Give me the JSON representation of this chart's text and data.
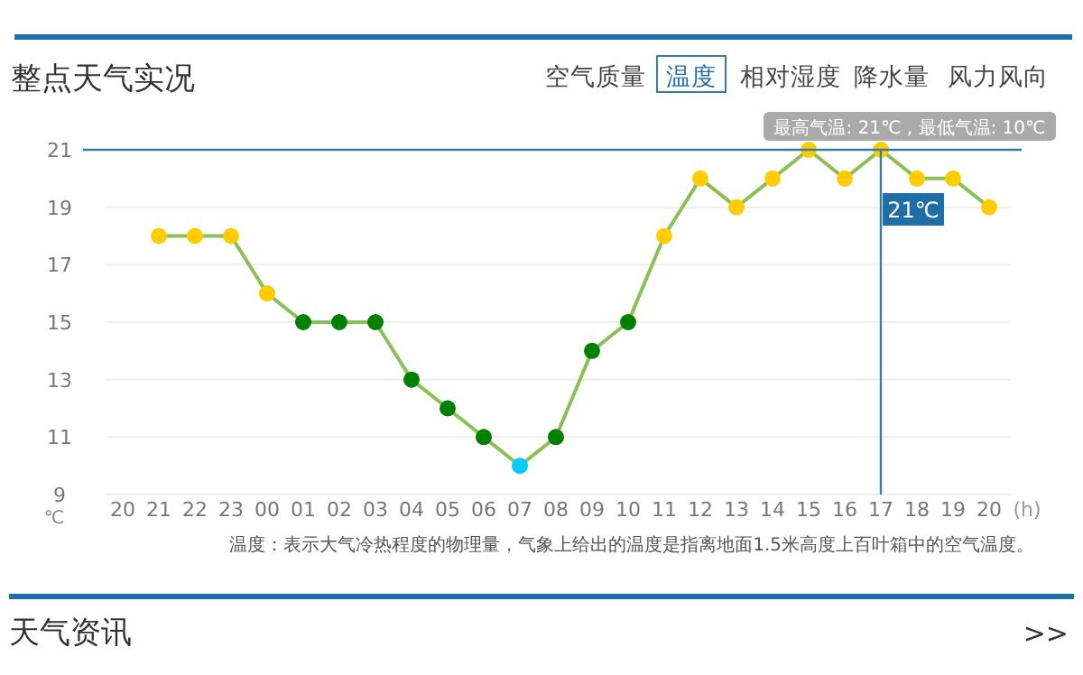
{
  "chart_data": {
    "type": "line",
    "title": "整点天气实况",
    "xlabel": "(h)",
    "ylabel": "℃",
    "categories": [
      "20",
      "21",
      "22",
      "23",
      "00",
      "01",
      "02",
      "03",
      "04",
      "05",
      "06",
      "07",
      "08",
      "09",
      "10",
      "11",
      "12",
      "13",
      "14",
      "15",
      "16",
      "17",
      "18",
      "19",
      "20"
    ],
    "series": [
      {
        "color": "#8cbf55",
        "values": [
          null,
          18,
          18,
          18,
          16,
          15,
          15,
          15,
          13,
          12,
          11,
          10,
          11,
          14,
          15,
          18,
          20,
          19,
          20,
          21,
          20,
          21,
          20,
          20,
          19
        ],
        "colors": [
          null,
          "#ffcc00",
          "#ffcc00",
          "#ffcc00",
          "#ffcc00",
          "#008000",
          "#008000",
          "#008000",
          "#008000",
          "#008000",
          "#008000",
          "#00ccff",
          "#008000",
          "#008000",
          "#008000",
          "#ffcc00",
          "#ffcc00",
          "#ffcc00",
          "#ffcc00",
          "#ffcc00",
          "#ffcc00",
          "#ffcc00",
          "#ffcc00",
          "#ffcc00",
          "#ffcc00"
        ]
      }
    ],
    "ylim": [
      9,
      21
    ],
    "yticks": [
      9,
      11,
      13,
      15,
      17,
      19,
      21
    ],
    "grid": "y",
    "marker": "circle",
    "ref_lines": [
      {
        "axis": "y",
        "value": 21,
        "color": "#3a7ca8"
      },
      {
        "axis": "x",
        "value": "17",
        "label": "21℃",
        "color": "#3a7ca8"
      }
    ],
    "annotations": [
      "空气质量",
      "温度",
      "相对湿度",
      "降水量",
      "风力风向",
      "最高气温: 21℃ , 最低气温: 10℃",
      "温度：表示大气冷热程度的物理量，气象上给出的温度是指离地面1.5米高度上百叶箱中的空气温度。",
      "天气资讯",
      ">>"
    ]
  }
}
